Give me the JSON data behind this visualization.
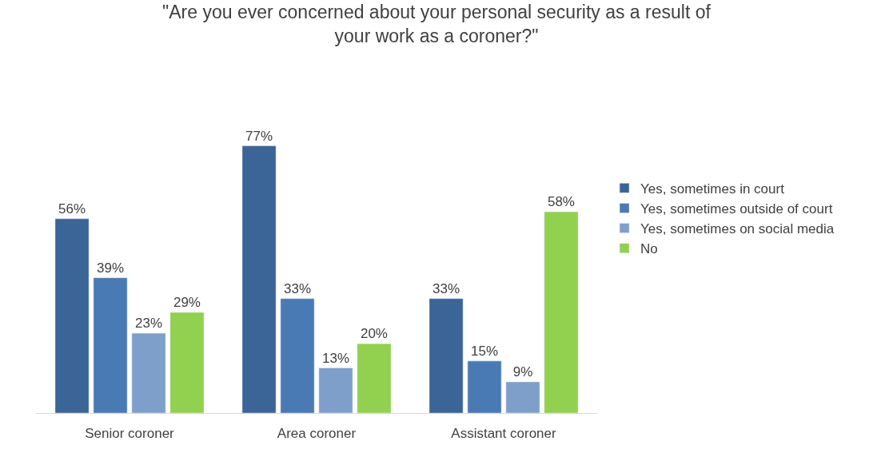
{
  "chart_data": {
    "type": "bar",
    "title": "\"Are you ever concerned about your personal security as a result of\nyour work as a coroner?\"",
    "categories": [
      "Senior coroner",
      "Area coroner",
      "Assistant coroner"
    ],
    "series": [
      {
        "name": "Yes, sometimes in court",
        "color": "#3b6497",
        "values": [
          56,
          77,
          33
        ],
        "value_labels": [
          "56%",
          "77%",
          "33%"
        ]
      },
      {
        "name": "Yes, sometimes outside of court",
        "color": "#4a7ab4",
        "values": [
          39,
          33,
          15
        ],
        "value_labels": [
          "39%",
          "33%",
          "15%"
        ]
      },
      {
        "name": "Yes, sometimes on social media",
        "color": "#7f9fcb",
        "values": [
          23,
          13,
          9
        ],
        "value_labels": [
          "23%",
          "13%",
          "9%"
        ]
      },
      {
        "name": "No",
        "color": "#92d050",
        "values": [
          29,
          20,
          58
        ],
        "value_labels": [
          "29%",
          "20%",
          "58%"
        ]
      }
    ],
    "legend": "right"
  }
}
